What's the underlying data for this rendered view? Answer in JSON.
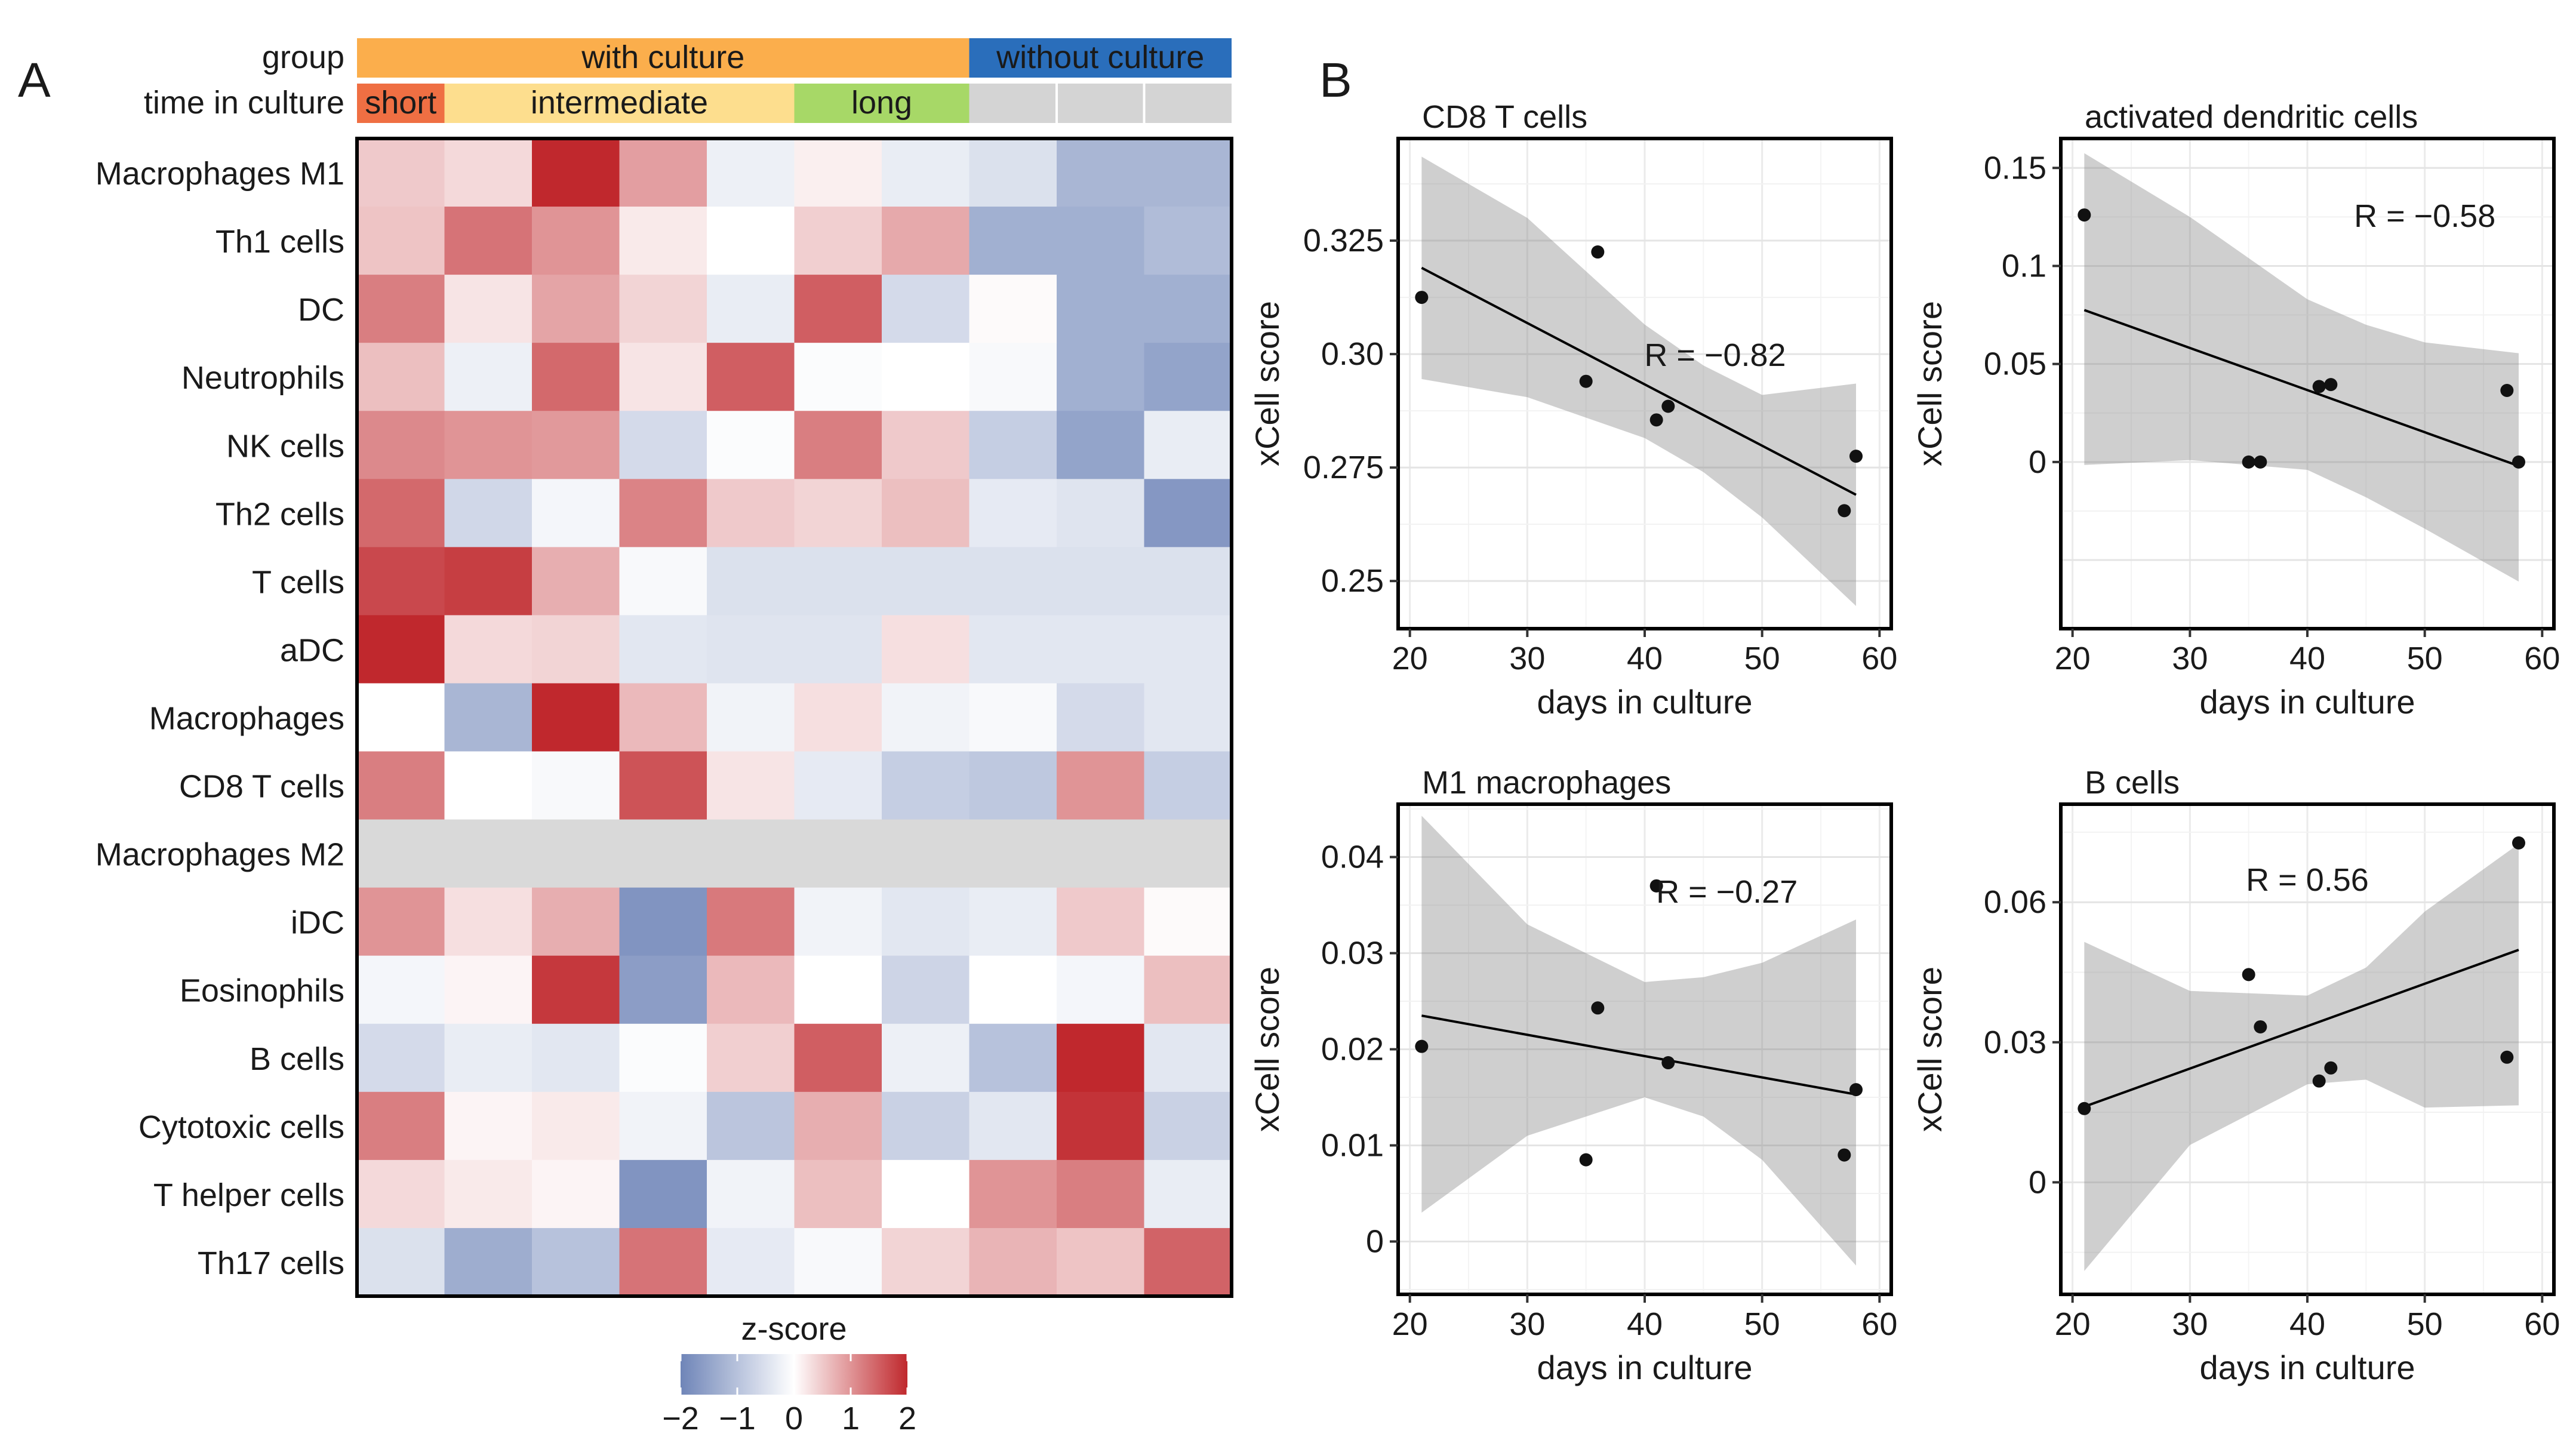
{
  "panel_labels": {
    "a": "A",
    "b": "B"
  },
  "chart_data": [
    {
      "type": "heatmap",
      "panel": "A",
      "annotation_rows": [
        "group",
        "time in culture"
      ],
      "groups": [
        {
          "label": "with culture",
          "from": 0,
          "to": 6,
          "color": "#fbae4c"
        },
        {
          "label": "without culture",
          "from": 7,
          "to": 9,
          "color": "#2a6ebb"
        }
      ],
      "time_segments": [
        {
          "label": "short",
          "from": 0,
          "to": 0,
          "color": "#ef6f43"
        },
        {
          "label": "intermediate",
          "from": 1,
          "to": 4,
          "color": "#fdde8e"
        },
        {
          "label": "long",
          "from": 5,
          "to": 6,
          "color": "#a7d867"
        },
        {
          "label": "",
          "from": 7,
          "to": 9,
          "color": "#d4d4d4"
        }
      ],
      "rows": [
        "Macrophages M1",
        "Th1 cells",
        "DC",
        "Neutrophils",
        "NK cells",
        "Th2 cells",
        "T cells",
        "aDC",
        "Macrophages",
        "CD8 T cells",
        "Macrophages M2",
        "iDC",
        "Eosinophils",
        "B cells",
        "Cytotoxic cells",
        "T helper cells",
        "Th17 cells"
      ],
      "values": [
        [
          0.5,
          0.35,
          2.0,
          0.9,
          -0.25,
          0.15,
          -0.3,
          -0.5,
          -1.2,
          -1.2
        ],
        [
          0.55,
          1.3,
          1.0,
          0.2,
          0.0,
          0.45,
          0.8,
          -1.3,
          -1.3,
          -1.1
        ],
        [
          1.2,
          0.25,
          0.85,
          0.4,
          -0.3,
          1.5,
          -0.6,
          0.05,
          -1.3,
          -1.3
        ],
        [
          0.6,
          -0.25,
          1.4,
          0.25,
          1.5,
          -0.05,
          0.0,
          -0.1,
          -1.3,
          -1.5
        ],
        [
          1.1,
          1.0,
          0.95,
          -0.6,
          -0.05,
          1.2,
          0.5,
          -0.8,
          -1.5,
          -0.3
        ],
        [
          1.4,
          -0.65,
          -0.15,
          1.15,
          0.5,
          0.4,
          0.6,
          -0.35,
          -0.45,
          -1.7
        ],
        [
          1.7,
          1.8,
          0.75,
          -0.1,
          -0.5,
          -0.5,
          -0.5,
          -0.5,
          -0.5,
          -0.5
        ],
        [
          2.0,
          0.35,
          0.4,
          -0.4,
          -0.45,
          -0.45,
          0.3,
          -0.4,
          -0.4,
          -0.4
        ],
        [
          0.0,
          -1.2,
          2.0,
          0.65,
          -0.2,
          0.3,
          -0.2,
          -0.1,
          -0.6,
          -0.4
        ],
        [
          1.2,
          0.0,
          -0.1,
          1.6,
          0.25,
          -0.35,
          -0.8,
          -0.9,
          1.0,
          -0.8
        ],
        [
          null,
          null,
          null,
          null,
          null,
          null,
          null,
          null,
          null,
          null
        ],
        [
          1.0,
          0.3,
          0.75,
          -1.75,
          1.25,
          -0.2,
          -0.4,
          -0.3,
          0.5,
          0.05
        ],
        [
          -0.15,
          0.1,
          1.85,
          -1.6,
          0.65,
          0.0,
          -0.7,
          0.0,
          -0.15,
          0.6
        ],
        [
          -0.6,
          -0.3,
          -0.4,
          -0.05,
          0.45,
          1.5,
          -0.25,
          -1.0,
          2.0,
          -0.4
        ],
        [
          1.2,
          0.1,
          0.2,
          -0.2,
          -0.95,
          0.75,
          -0.75,
          -0.4,
          1.9,
          -0.75
        ],
        [
          0.35,
          0.2,
          0.1,
          -1.75,
          -0.2,
          0.6,
          0.0,
          1.0,
          1.2,
          -0.3
        ],
        [
          -0.5,
          -1.35,
          -1.0,
          1.3,
          -0.35,
          -0.1,
          0.4,
          0.7,
          0.55,
          1.45
        ]
      ],
      "na_color": "#d9d9d9",
      "color_scale": {
        "min": -2,
        "max": 2,
        "low": "#6f85b8",
        "mid": "#ffffff",
        "high": "#c0282d",
        "title": "z-score",
        "ticks": [
          -2,
          -1,
          0,
          1,
          2
        ],
        "tick_labels": [
          "−2",
          "−1",
          "0",
          "1",
          "2"
        ]
      }
    },
    {
      "type": "scatter",
      "panel": "B",
      "title": "CD8 T cells",
      "xlabel": "days in culture",
      "ylabel": "xCell score",
      "xlim": [
        19,
        61
      ],
      "ylim": [
        0.2395,
        0.3475
      ],
      "xticks": [
        20,
        30,
        40,
        50,
        60
      ],
      "xtick_labels": [
        "20",
        "30",
        "40",
        "50",
        "60"
      ],
      "yticks": [
        0.25,
        0.275,
        0.3,
        0.325
      ],
      "ytick_labels": [
        "0.25",
        "0.275",
        "0.30",
        "0.325"
      ],
      "points": [
        [
          21,
          0.3125
        ],
        [
          35,
          0.294
        ],
        [
          36,
          0.3225
        ],
        [
          41,
          0.2855
        ],
        [
          42,
          0.2885
        ],
        [
          57,
          0.2655
        ],
        [
          58,
          0.2775
        ]
      ],
      "fit": {
        "x": [
          21,
          58
        ],
        "y": [
          0.319,
          0.269
        ]
      },
      "band": {
        "x": [
          21,
          30,
          40,
          45,
          50,
          58
        ],
        "lower": [
          0.2945,
          0.2905,
          0.2815,
          0.274,
          0.264,
          0.2445
        ],
        "upper": [
          0.3435,
          0.33,
          0.3065,
          0.2975,
          0.291,
          0.2935
        ]
      },
      "annotation": "R = −0.82",
      "annotation_at": [
        46,
        0.3
      ]
    },
    {
      "type": "scatter",
      "panel": "B",
      "title": "activated dendritic cells",
      "xlabel": "days in culture",
      "ylabel": "xCell score",
      "xlim": [
        19,
        61
      ],
      "ylim": [
        -0.085,
        0.165
      ],
      "xticks": [
        20,
        30,
        40,
        50,
        60
      ],
      "xtick_labels": [
        "20",
        "30",
        "40",
        "50",
        "60"
      ],
      "yticks": [
        0,
        0.05,
        0.1,
        0.15
      ],
      "ytick_labels": [
        "0",
        "0.05",
        "0.1",
        "0.15"
      ],
      "points": [
        [
          21,
          0.126
        ],
        [
          35,
          0.0
        ],
        [
          36,
          0.0
        ],
        [
          41,
          0.0385
        ],
        [
          42,
          0.0395
        ],
        [
          57,
          0.0365
        ],
        [
          58,
          0.0
        ]
      ],
      "fit": {
        "x": [
          21,
          58
        ],
        "y": [
          0.0775,
          -0.002
        ]
      },
      "band": {
        "x": [
          21,
          30,
          40,
          45,
          50,
          58
        ],
        "lower": [
          -0.0015,
          0.001,
          -0.004,
          -0.018,
          -0.034,
          -0.061
        ],
        "upper": [
          0.1575,
          0.125,
          0.083,
          0.07,
          0.061,
          0.0555
        ]
      },
      "annotation": "R = −0.58",
      "annotation_at": [
        50,
        0.126
      ]
    },
    {
      "type": "scatter",
      "panel": "B",
      "title": "M1 macrophages",
      "xlabel": "days in culture",
      "ylabel": "xCell score",
      "xlim": [
        19,
        61
      ],
      "ylim": [
        -0.0055,
        0.0455
      ],
      "xticks": [
        20,
        30,
        40,
        50,
        60
      ],
      "xtick_labels": [
        "20",
        "30",
        "40",
        "50",
        "60"
      ],
      "yticks": [
        0,
        0.01,
        0.02,
        0.03,
        0.04
      ],
      "ytick_labels": [
        "0",
        "0.01",
        "0.02",
        "0.03",
        "0.04"
      ],
      "points": [
        [
          21,
          0.0203
        ],
        [
          35,
          0.0085
        ],
        [
          36,
          0.0243
        ],
        [
          41,
          0.037
        ],
        [
          42,
          0.0186
        ],
        [
          57,
          0.009
        ],
        [
          58,
          0.0158
        ]
      ],
      "fit": {
        "x": [
          21,
          58
        ],
        "y": [
          0.0235,
          0.0153
        ]
      },
      "band": {
        "x": [
          21,
          30,
          40,
          45,
          50,
          58
        ],
        "lower": [
          0.003,
          0.011,
          0.015,
          0.013,
          0.0085,
          -0.0025
        ],
        "upper": [
          0.0443,
          0.033,
          0.027,
          0.0275,
          0.029,
          0.0335
        ]
      },
      "annotation": "R = −0.27",
      "annotation_at": [
        47,
        0.0365
      ]
    },
    {
      "type": "scatter",
      "panel": "B",
      "title": "B cells",
      "xlabel": "days in culture",
      "ylabel": "xCell score",
      "xlim": [
        19,
        61
      ],
      "ylim": [
        -0.024,
        0.081
      ],
      "xticks": [
        20,
        30,
        40,
        50,
        60
      ],
      "xtick_labels": [
        "20",
        "30",
        "40",
        "50",
        "60"
      ],
      "yticks": [
        0,
        0.03,
        0.06
      ],
      "ytick_labels": [
        "0",
        "0.03",
        "0.06"
      ],
      "points": [
        [
          21,
          0.0158
        ],
        [
          35,
          0.0445
        ],
        [
          36,
          0.0333
        ],
        [
          41,
          0.0217
        ],
        [
          42,
          0.0245
        ],
        [
          57,
          0.0268
        ],
        [
          58,
          0.0727
        ]
      ],
      "fit": {
        "x": [
          21,
          58
        ],
        "y": [
          0.0162,
          0.0498
        ]
      },
      "band": {
        "x": [
          21,
          30,
          40,
          45,
          50,
          58
        ],
        "lower": [
          -0.019,
          0.008,
          0.021,
          0.022,
          0.016,
          0.0165
        ],
        "upper": [
          0.0515,
          0.041,
          0.04,
          0.046,
          0.058,
          0.0725
        ]
      },
      "annotation": "R = 0.56",
      "annotation_at": [
        40,
        0.065
      ]
    }
  ]
}
